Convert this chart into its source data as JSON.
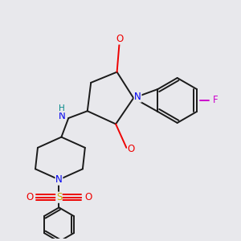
{
  "bg_color": "#e8e8ec",
  "bond_color": "#1a1a1a",
  "bond_width": 1.4,
  "atom_colors": {
    "N": "#0000ee",
    "O": "#ee0000",
    "F": "#cc00cc",
    "S": "#ccaa00",
    "H": "#008888",
    "C": "#1a1a1a"
  },
  "font_size": 8.5,
  "xlim": [
    0,
    10
  ],
  "ylim": [
    0,
    10
  ]
}
